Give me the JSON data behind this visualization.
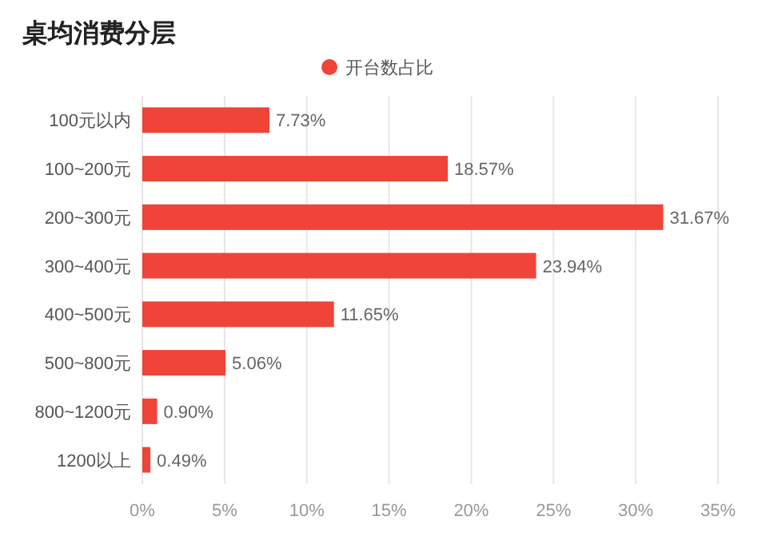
{
  "chart_data": {
    "type": "bar",
    "orientation": "horizontal",
    "title": "桌均消费分层",
    "categories": [
      "100元以内",
      "100~200元",
      "200~300元",
      "300~400元",
      "400~500元",
      "500~800元",
      "800~1200元",
      "1200以上"
    ],
    "series": [
      {
        "name": "开台数占比",
        "color": "#f04438",
        "values": [
          7.73,
          18.57,
          31.67,
          23.94,
          11.65,
          5.06,
          0.9,
          0.49
        ],
        "value_labels": [
          "7.73%",
          "18.57%",
          "31.67%",
          "23.94%",
          "11.65%",
          "5.06%",
          "0.90%",
          "0.49%"
        ]
      }
    ],
    "xlim": [
      0,
      35
    ],
    "xticks": [
      {
        "value": 0,
        "label": "0%"
      },
      {
        "value": 5,
        "label": "5%"
      },
      {
        "value": 10,
        "label": "10%"
      },
      {
        "value": 15,
        "label": "15%"
      },
      {
        "value": 20,
        "label": "20%"
      },
      {
        "value": 25,
        "label": "25%"
      },
      {
        "value": 30,
        "label": "30%"
      },
      {
        "value": 35,
        "label": "35%"
      }
    ],
    "grid": "x",
    "legend": "top"
  }
}
